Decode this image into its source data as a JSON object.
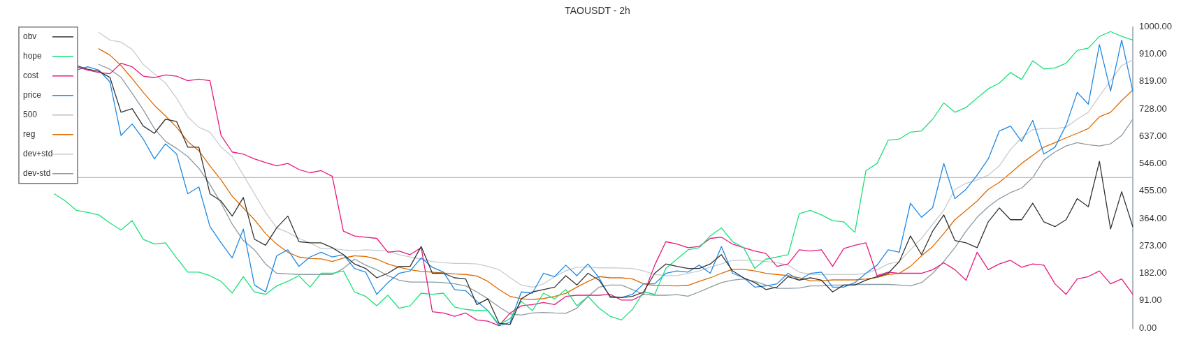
{
  "chart_data": {
    "type": "line",
    "title": "TAOUSDT - 2h",
    "categories": [
      null,
      null,
      null,
      null,
      null,
      null,
      null,
      null,
      null,
      null,
      null,
      null,
      null,
      null,
      null,
      null,
      null,
      null,
      null,
      null,
      null,
      null,
      null,
      null,
      null,
      null,
      null,
      null,
      null,
      null,
      null,
      null,
      null,
      null,
      null,
      null,
      null,
      null,
      null,
      null,
      null,
      null,
      null,
      null,
      null,
      null,
      null,
      null,
      null,
      null,
      null,
      null,
      null,
      null,
      null,
      null,
      null,
      null,
      null,
      null,
      null,
      null,
      null,
      null,
      null,
      null,
      null,
      null,
      null,
      null,
      null,
      null,
      null,
      null,
      null,
      null,
      null,
      null,
      null,
      null,
      null,
      null,
      null,
      null,
      null,
      null,
      null,
      null,
      null,
      null,
      null,
      null,
      null,
      null,
      null,
      null,
      null,
      null,
      null,
      null,
      null
    ],
    "series": [
      {
        "name": "obv",
        "color": "#333333",
        "values": [
          null,
          null,
          null,
          null,
          null,
          872,
          860,
          853,
          833,
          717,
          729,
          671,
          647,
          694,
          686,
          601,
          601,
          446,
          422,
          372,
          434,
          295,
          275,
          333,
          372,
          287,
          283,
          283,
          267,
          244,
          213,
          198,
          167,
          182,
          205,
          205,
          271,
          182,
          182,
          167,
          163,
          78,
          97,
          16,
          12,
          97,
          120,
          128,
          136,
          174,
          143,
          182,
          159,
          105,
          101,
          105,
          120,
          182,
          213,
          205,
          198,
          198,
          213,
          244,
          190,
          167,
          151,
          128,
          136,
          171,
          159,
          167,
          159,
          120,
          143,
          143,
          159,
          171,
          182,
          221,
          306,
          244,
          322,
          376,
          291,
          283,
          267,
          353,
          399,
          360,
          360,
          415,
          353,
          337,
          360,
          430,
          403,
          554,
          329,
          453,
          337
        ]
      },
      {
        "name": "hope",
        "color": "#1ee07a",
        "values": [
          null,
          null,
          null,
          446,
          422,
          391,
          384,
          376,
          349,
          326,
          357,
          295,
          279,
          283,
          233,
          186,
          186,
          174,
          155,
          116,
          171,
          120,
          112,
          140,
          155,
          174,
          136,
          182,
          182,
          190,
          120,
          105,
          74,
          109,
          66,
          74,
          116,
          112,
          116,
          70,
          62,
          58,
          58,
          12,
          31,
          89,
          58,
          116,
          97,
          128,
          74,
          105,
          66,
          39,
          27,
          62,
          120,
          112,
          198,
          229,
          260,
          267,
          306,
          333,
          287,
          267,
          198,
          229,
          236,
          244,
          380,
          391,
          376,
          357,
          353,
          318,
          523,
          547,
          624,
          628,
          651,
          655,
          694,
          748,
          717,
          733,
          764,
          795,
          814,
          849,
          826,
          888,
          861,
          864,
          880,
          922,
          930,
          969,
          985,
          969,
          957
        ]
      },
      {
        "name": "cost",
        "color": "#e8197f",
        "values": [
          null,
          null,
          null,
          null,
          null,
          868,
          857,
          849,
          845,
          880,
          868,
          837,
          832,
          841,
          837,
          822,
          827,
          822,
          640,
          585,
          578,
          562,
          550,
          539,
          547,
          527,
          516,
          523,
          504,
          322,
          306,
          302,
          298,
          252,
          256,
          244,
          267,
          54,
          50,
          39,
          50,
          27,
          23,
          8,
          50,
          74,
          78,
          85,
          78,
          105,
          109,
          109,
          109,
          112,
          93,
          93,
          112,
          209,
          287,
          279,
          267,
          271,
          298,
          302,
          279,
          267,
          256,
          248,
          205,
          213,
          260,
          256,
          260,
          205,
          264,
          275,
          283,
          174,
          186,
          182,
          182,
          182,
          194,
          217,
          194,
          159,
          252,
          194,
          213,
          225,
          202,
          213,
          209,
          147,
          112,
          163,
          171,
          190,
          147,
          163,
          112
        ]
      },
      {
        "name": "price",
        "color": "#1e88e5",
        "values": [
          null,
          null,
          null,
          null,
          null,
          857,
          868,
          857,
          818,
          640,
          678,
          628,
          562,
          612,
          578,
          446,
          469,
          337,
          283,
          233,
          329,
          143,
          120,
          240,
          260,
          205,
          236,
          252,
          236,
          244,
          198,
          186,
          112,
          151,
          182,
          190,
          233,
          202,
          186,
          128,
          124,
          89,
          58,
          8,
          19,
          120,
          116,
          182,
          171,
          209,
          174,
          213,
          167,
          101,
          101,
          112,
          147,
          147,
          182,
          190,
          186,
          209,
          182,
          271,
          182,
          167,
          136,
          140,
          147,
          182,
          159,
          182,
          186,
          136,
          136,
          151,
          182,
          209,
          260,
          252,
          415,
          368,
          400,
          547,
          430,
          461,
          508,
          562,
          655,
          671,
          620,
          690,
          578,
          601,
          674,
          783,
          744,
          942,
          787,
          957,
          787
        ]
      },
      {
        "name": "500",
        "color": "#bdbdbd",
        "values": [
          null,
          null,
          null,
          null,
          null,
          500,
          500,
          500,
          500,
          500,
          500,
          500,
          500,
          500,
          500,
          500,
          500,
          500,
          500,
          500,
          500,
          500,
          500,
          500,
          500,
          500,
          500,
          500,
          500,
          500,
          500,
          500,
          500,
          500,
          500,
          500,
          500,
          500,
          500,
          500,
          500,
          500,
          500,
          500,
          500,
          500,
          500,
          500,
          500,
          500,
          500,
          500,
          500,
          500,
          500,
          500,
          500,
          500,
          500,
          500,
          500,
          500,
          500,
          500,
          500,
          500,
          500,
          500,
          500,
          500,
          500,
          500,
          500,
          500,
          500,
          500,
          500,
          500,
          500,
          500,
          500,
          500,
          500,
          500,
          500,
          500,
          500,
          500,
          500,
          500,
          500,
          500,
          500,
          500,
          500,
          500,
          500,
          500,
          500,
          500,
          500
        ]
      },
      {
        "name": "reg",
        "color": "#e06a00",
        "values": [
          null,
          null,
          null,
          null,
          null,
          null,
          null,
          928,
          907,
          872,
          829,
          783,
          740,
          705,
          667,
          620,
          589,
          539,
          492,
          438,
          399,
          360,
          314,
          279,
          252,
          236,
          231,
          230,
          221,
          233,
          240,
          238,
          229,
          213,
          202,
          194,
          188,
          186,
          183,
          180,
          178,
          173,
          155,
          128,
          105,
          97,
          95,
          98,
          105,
          115,
          136,
          155,
          171,
          167,
          167,
          163,
          147,
          141,
          141,
          140,
          142,
          155,
          167,
          182,
          195,
          195,
          190,
          182,
          178,
          174,
          167,
          157,
          157,
          160,
          160,
          160,
          163,
          168,
          178,
          182,
          205,
          240,
          271,
          314,
          360,
          391,
          422,
          461,
          484,
          515,
          547,
          574,
          601,
          616,
          632,
          647,
          663,
          702,
          717,
          756,
          791
        ]
      },
      {
        "name": "dev+std",
        "color": "#c8cdd1",
        "values": [
          null,
          null,
          null,
          null,
          null,
          null,
          null,
          982,
          957,
          950,
          926,
          876,
          845,
          814,
          764,
          702,
          667,
          651,
          601,
          570,
          508,
          446,
          384,
          333,
          318,
          298,
          283,
          264,
          264,
          260,
          257,
          260,
          258,
          256,
          244,
          236,
          229,
          221,
          217,
          215,
          215,
          213,
          205,
          194,
          167,
          143,
          136,
          147,
          171,
          190,
          202,
          203,
          200,
          200,
          199,
          198,
          190,
          178,
          174,
          174,
          182,
          190,
          202,
          213,
          225,
          226,
          225,
          221,
          217,
          209,
          186,
          178,
          178,
          178,
          178,
          178,
          182,
          194,
          213,
          221,
          260,
          298,
          345,
          391,
          461,
          481,
          492,
          508,
          539,
          593,
          632,
          659,
          663,
          663,
          667,
          694,
          717,
          771,
          822,
          872,
          891
        ]
      },
      {
        "name": "dev-std",
        "color": "#8a9aa4",
        "values": [
          null,
          null,
          null,
          null,
          null,
          null,
          null,
          876,
          860,
          833,
          780,
          725,
          663,
          620,
          597,
          570,
          531,
          477,
          415,
          345,
          291,
          260,
          213,
          182,
          180,
          178,
          178,
          178,
          178,
          198,
          229,
          209,
          194,
          174,
          159,
          153,
          153,
          153,
          151,
          147,
          140,
          120,
          97,
          70,
          47,
          43,
          50,
          52,
          50,
          49,
          66,
          105,
          136,
          143,
          143,
          128,
          112,
          109,
          109,
          111,
          106,
          120,
          136,
          151,
          159,
          163,
          155,
          143,
          132,
          132,
          133,
          140,
          140,
          143,
          143,
          145,
          145,
          145,
          145,
          143,
          140,
          151,
          182,
          221,
          267,
          322,
          368,
          403,
          430,
          450,
          465,
          500,
          558,
          585,
          605,
          616,
          609,
          605,
          612,
          640,
          694
        ]
      }
    ],
    "ylim": [
      0,
      1000
    ],
    "yticks": [
      {
        "value": 0,
        "label": "0.00"
      },
      {
        "value": 91,
        "label": "91.00"
      },
      {
        "value": 182,
        "label": "182.00"
      },
      {
        "value": 273,
        "label": "273.00"
      },
      {
        "value": 364,
        "label": "364.00"
      },
      {
        "value": 455,
        "label": "455.00"
      },
      {
        "value": 546,
        "label": "546.00"
      },
      {
        "value": 637,
        "label": "637.00"
      },
      {
        "value": 728,
        "label": "728.00"
      },
      {
        "value": 819,
        "label": "819.00"
      },
      {
        "value": 910,
        "label": "910.00"
      },
      {
        "value": 1000,
        "label": "1000.00"
      }
    ],
    "tick_labels": "y",
    "legend": "top left",
    "marker": "none",
    "line_style": "solid"
  }
}
